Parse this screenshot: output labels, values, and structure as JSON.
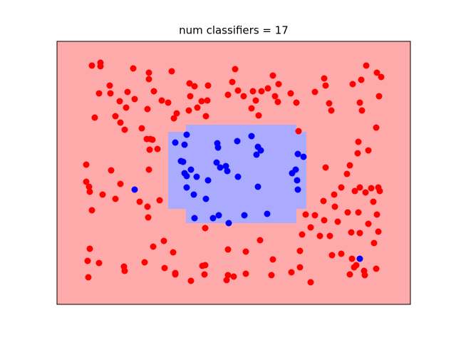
{
  "chart_data": {
    "type": "scatter",
    "title": "num classifiers = 17",
    "xlim": [
      80,
      576
    ],
    "ylim": [
      427,
      58
    ],
    "background_color": "#ffaaaa",
    "regions": [
      {
        "color": "#aaaaff",
        "rects": [
          [
            236,
            430,
            185,
            293
          ],
          [
            261,
            416,
            175,
            313
          ]
        ]
      }
    ],
    "series": [
      {
        "color": "#0000ff",
        "x": [
          262,
          246,
          259,
          305,
          306,
          333,
          353,
          362,
          366,
          360,
          418,
          426,
          254,
          257,
          304,
          268,
          309,
          317,
          319,
          259,
          262,
          276,
          334,
          292,
          410,
          415,
          417,
          262,
          362,
          418,
          189,
          272,
          289,
          273,
          299,
          307,
          343,
          375,
          321,
          505
        ],
        "y": [
          189,
          200,
          203,
          201,
          207,
          198,
          191,
          206,
          211,
          217,
          216,
          220,
          226,
          227,
          228,
          238,
          235,
          233,
          240,
          243,
          247,
          248,
          248,
          253,
          243,
          238,
          253,
          263,
          262,
          266,
          266,
          273,
          279,
          306,
          306,
          302,
          302,
          300,
          313,
          363
        ]
      },
      {
        "color": "#ff0000",
        "x": [
          129,
          141,
          141,
          187,
          209,
          241,
          209,
          330,
          383,
          455,
          514,
          529,
          535,
          507,
          495,
          457,
          266,
          273,
          154,
          139,
          155,
          179,
          189,
          216,
          227,
          236,
          267,
          292,
          326,
          334,
          355,
          367,
          376,
          391,
          408,
          442,
          532,
          320,
          342,
          168,
          177,
          207,
          248,
          283,
          291,
          277,
          265,
          359,
          386,
          390,
          416,
          462,
          465,
          505,
          508,
          133,
          162,
          169,
          175,
          199,
          244,
          289,
          353,
          363,
          528,
          419,
          206,
          211,
          214,
          221,
          210,
          503,
          502,
          517,
          121,
          156,
          209,
          457,
          487,
          491,
          169,
          121,
          125,
          126,
          144,
          162,
          196,
          207,
          224,
          129,
          208,
          479,
          469,
          498,
          505,
          513,
          521,
          531,
          533,
          524,
          488,
          503,
          529,
          454,
          455,
          470,
          429,
          442,
          424,
          436,
          449,
          463,
          474,
          493,
          517,
          505,
          531,
          525,
          288,
          230,
          215,
          243,
          126,
          320,
          365,
          345,
          421,
          383,
          466,
          479,
          494,
          123,
          139,
          174,
          175,
          203,
          231,
          246,
          246,
          288,
          284,
          287,
          320,
          328,
          318,
          345,
          381,
          409,
          421,
          436,
          497,
          500,
          511,
          512,
          528,
          491,
          124,
          268
        ],
        "y": [
          92,
          88,
          93,
          96,
          102,
          100,
          111,
          97,
          106,
          110,
          92,
          102,
          108,
          112,
          118,
          120,
          117,
          121,
          120,
          131,
          131,
          129,
          139,
          128,
          141,
          144,
          135,
          120,
          115,
          127,
          128,
          128,
          124,
          118,
          131,
          129,
          135,
          133,
          135,
          142,
          151,
          153,
          159,
          142,
          141,
          151,
          155,
          141,
          135,
          143,
          144,
          145,
          155,
          144,
          155,
          165,
          163,
          172,
          182,
          180,
          166,
          163,
          152,
          162,
          179,
          184,
          195,
          195,
          196,
          209,
          210,
          199,
          215,
          211,
          231,
          239,
          238,
          235,
          244,
          232,
          258,
          255,
          262,
          269,
          273,
          279,
          283,
          290,
          281,
          295,
          305,
          263,
          273,
          268,
          263,
          270,
          264,
          263,
          268,
          283,
          298,
          298,
          301,
          282,
          309,
          290,
          301,
          302,
          329,
          319,
          331,
          331,
          311,
          326,
          314,
          327,
          325,
          341,
          320,
          338,
          346,
          354,
          349,
          350,
          337,
          353,
          352,
          364,
          358,
          356,
          363,
          366,
          369,
          374,
          380,
          368,
          376,
          383,
          385,
          372,
          373,
          385,
          386,
          388,
          393,
          384,
          386,
          382,
          375,
          396,
          375,
          372,
          380,
          386,
          377,
          385,
          389,
          394
        ]
      }
    ]
  }
}
